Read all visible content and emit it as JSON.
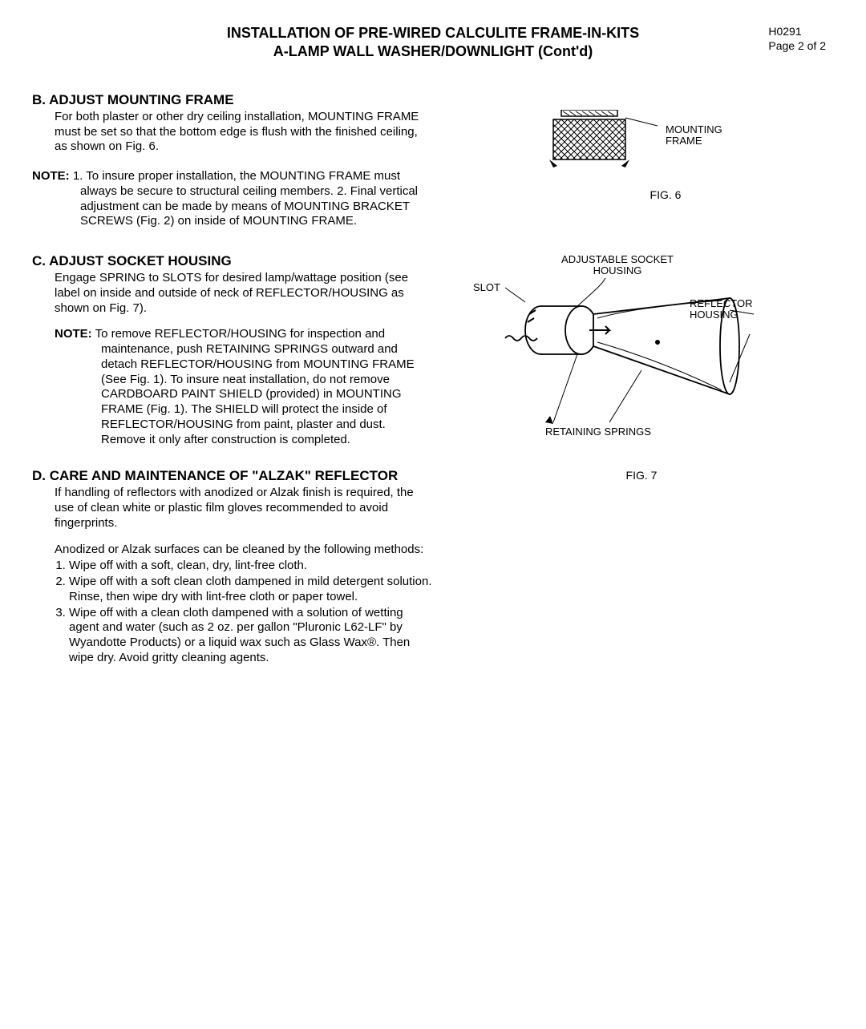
{
  "header": {
    "code": "H0291",
    "page_line": "Page 2 of 2"
  },
  "title": {
    "line1": "INSTALLATION OF PRE-WIRED CALCULITE FRAME-IN-KITS",
    "line2": "A-LAMP WALL WASHER/DOWNLIGHT (Cont'd)"
  },
  "section_b": {
    "heading": "B.  ADJUST MOUNTING FRAME",
    "body": "For both plaster or other dry ceiling installation, MOUNTING FRAME must be set so that the bottom edge is flush with the finished ceiling, as shown on Fig. 6.",
    "note_label": "NOTE:",
    "note_body": "1. To insure proper installation, the MOUNTING FRAME must always be secure to structural ceiling members. 2. Final vertical adjustment can be made by means of MOUNTING BRACKET SCREWS (Fig. 2) on inside of MOUNTING FRAME."
  },
  "section_c": {
    "heading": "C.  ADJUST SOCKET HOUSING",
    "body": "Engage SPRING to SLOTS for desired lamp/wattage position (see label on inside and outside of neck of REFLECTOR/HOUSING as shown on Fig. 7).",
    "note_label": "NOTE:",
    "note_body": "To remove REFLECTOR/HOUSING for inspection and maintenance, push RETAINING SPRINGS outward and detach REFLECTOR/HOUSING from MOUNTING FRAME (See Fig. 1). To insure neat installation, do not remove CARDBOARD PAINT SHIELD (provided) in MOUNTING FRAME (Fig. 1). The SHIELD will protect the inside of REFLECTOR/HOUSING from paint, plaster and dust. Remove it only after construction is completed."
  },
  "section_d": {
    "heading": "D.  CARE AND MAINTENANCE OF \"ALZAK\" REFLECTOR",
    "body1": "If handling of reflectors with anodized or Alzak finish is required, the use of clean white or plastic film gloves recommended to avoid fingerprints.",
    "body2": "Anodized or Alzak surfaces can be cleaned by the following methods:",
    "items": [
      "Wipe off with a soft, clean, dry, lint-free cloth.",
      "Wipe off with a soft clean cloth dampened in mild detergent solution. Rinse, then wipe dry with lint-free cloth or paper towel.",
      "Wipe off with a clean cloth dampened with a solution of wetting agent and water (such as 2 oz. per gallon \"Pluronic L62-LF\" by Wyandotte Products) or a liquid wax such as Glass Wax®. Then wipe dry. Avoid gritty cleaning agents."
    ]
  },
  "figures": {
    "fig6": {
      "caption": "FIG. 6",
      "label_mounting_frame": "MOUNTING FRAME"
    },
    "fig7": {
      "caption": "FIG. 7",
      "label_adjustable_socket": "ADJUSTABLE SOCKET HOUSING",
      "label_slot": "SLOT",
      "label_reflector_housing": "REFLECTOR HOUSING",
      "label_retaining_springs": "RETAINING SPRINGS"
    }
  }
}
